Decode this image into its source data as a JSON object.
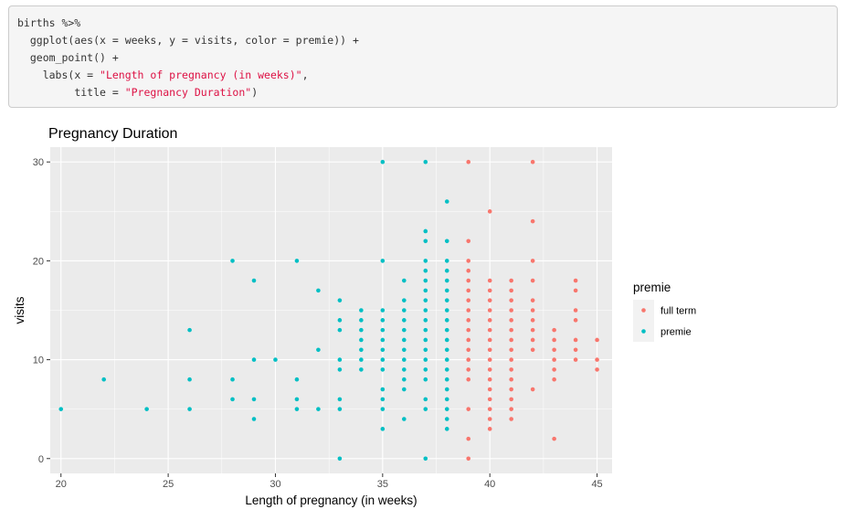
{
  "code": {
    "lines": [
      {
        "indent": "",
        "parts": [
          {
            "t": "births %>%",
            "s": false
          }
        ]
      },
      {
        "indent": "  ",
        "parts": [
          {
            "t": "ggplot(aes(x = weeks, y = visits, color = premie)) +",
            "s": false
          }
        ]
      },
      {
        "indent": "  ",
        "parts": [
          {
            "t": "geom_point() +",
            "s": false
          }
        ]
      },
      {
        "indent": "    ",
        "parts": [
          {
            "t": "labs(x = ",
            "s": false
          },
          {
            "t": "\"Length of pregnancy (in weeks)\"",
            "s": true
          },
          {
            "t": ",",
            "s": false
          }
        ]
      },
      {
        "indent": "         ",
        "parts": [
          {
            "t": "title = ",
            "s": false
          },
          {
            "t": "\"Pregnancy Duration\"",
            "s": true
          },
          {
            "t": ")",
            "s": false
          }
        ]
      }
    ]
  },
  "chart_data": {
    "type": "scatter",
    "title": "Pregnancy Duration",
    "xlabel": "Length of pregnancy (in weeks)",
    "ylabel": "visits",
    "xlim": [
      19.5,
      45.7
    ],
    "ylim": [
      -1.5,
      31.5
    ],
    "xticks": [
      20,
      25,
      30,
      35,
      40,
      45
    ],
    "yticks": [
      0,
      10,
      20,
      30
    ],
    "grid": true,
    "legend": {
      "title": "premie",
      "placement": "right"
    },
    "series": [
      {
        "name": "full term",
        "color": "#F8766D",
        "points": [
          [
            39,
            30
          ],
          [
            39,
            22
          ],
          [
            39,
            20
          ],
          [
            39,
            19
          ],
          [
            39,
            18
          ],
          [
            39,
            17
          ],
          [
            39,
            16
          ],
          [
            39,
            15
          ],
          [
            39,
            14
          ],
          [
            39,
            13
          ],
          [
            39,
            12
          ],
          [
            39,
            11
          ],
          [
            39,
            10
          ],
          [
            39,
            9
          ],
          [
            39,
            8
          ],
          [
            39,
            5
          ],
          [
            39,
            2
          ],
          [
            39,
            0
          ],
          [
            40,
            25
          ],
          [
            40,
            18
          ],
          [
            40,
            17
          ],
          [
            40,
            16
          ],
          [
            40,
            15
          ],
          [
            40,
            14
          ],
          [
            40,
            13
          ],
          [
            40,
            12
          ],
          [
            40,
            11
          ],
          [
            40,
            10
          ],
          [
            40,
            9
          ],
          [
            40,
            8
          ],
          [
            40,
            7
          ],
          [
            40,
            6
          ],
          [
            40,
            5
          ],
          [
            40,
            4
          ],
          [
            40,
            3
          ],
          [
            41,
            18
          ],
          [
            41,
            17
          ],
          [
            41,
            16
          ],
          [
            41,
            15
          ],
          [
            41,
            14
          ],
          [
            41,
            13
          ],
          [
            41,
            12
          ],
          [
            41,
            11
          ],
          [
            41,
            10
          ],
          [
            41,
            9
          ],
          [
            41,
            8
          ],
          [
            41,
            7
          ],
          [
            41,
            6
          ],
          [
            41,
            5
          ],
          [
            41,
            4
          ],
          [
            42,
            30
          ],
          [
            42,
            24
          ],
          [
            42,
            20
          ],
          [
            42,
            18
          ],
          [
            42,
            16
          ],
          [
            42,
            15
          ],
          [
            42,
            14
          ],
          [
            42,
            13
          ],
          [
            42,
            12
          ],
          [
            42,
            11
          ],
          [
            42,
            7
          ],
          [
            43,
            13
          ],
          [
            43,
            12
          ],
          [
            43,
            11
          ],
          [
            43,
            10
          ],
          [
            43,
            9
          ],
          [
            43,
            8
          ],
          [
            43,
            2
          ],
          [
            44,
            18
          ],
          [
            44,
            17
          ],
          [
            44,
            15
          ],
          [
            44,
            14
          ],
          [
            44,
            12
          ],
          [
            44,
            11
          ],
          [
            44,
            10
          ],
          [
            45,
            12
          ],
          [
            45,
            10
          ],
          [
            45,
            9
          ]
        ]
      },
      {
        "name": "premie",
        "color": "#00BFC4",
        "points": [
          [
            20,
            5
          ],
          [
            22,
            8
          ],
          [
            24,
            5
          ],
          [
            26,
            13
          ],
          [
            26,
            8
          ],
          [
            26,
            5
          ],
          [
            28,
            20
          ],
          [
            28,
            8
          ],
          [
            28,
            6
          ],
          [
            29,
            18
          ],
          [
            29,
            10
          ],
          [
            29,
            6
          ],
          [
            29,
            4
          ],
          [
            30,
            10
          ],
          [
            31,
            20
          ],
          [
            31,
            8
          ],
          [
            31,
            6
          ],
          [
            31,
            5
          ],
          [
            32,
            17
          ],
          [
            32,
            11
          ],
          [
            32,
            5
          ],
          [
            33,
            16
          ],
          [
            33,
            14
          ],
          [
            33,
            13
          ],
          [
            33,
            10
          ],
          [
            33,
            9
          ],
          [
            33,
            6
          ],
          [
            33,
            5
          ],
          [
            33,
            0
          ],
          [
            34,
            15
          ],
          [
            34,
            14
          ],
          [
            34,
            13
          ],
          [
            34,
            12
          ],
          [
            34,
            11
          ],
          [
            34,
            10
          ],
          [
            34,
            9
          ],
          [
            35,
            30
          ],
          [
            35,
            20
          ],
          [
            35,
            15
          ],
          [
            35,
            14
          ],
          [
            35,
            13
          ],
          [
            35,
            12
          ],
          [
            35,
            11
          ],
          [
            35,
            10
          ],
          [
            35,
            9
          ],
          [
            35,
            7
          ],
          [
            35,
            6
          ],
          [
            35,
            5
          ],
          [
            35,
            3
          ],
          [
            36,
            18
          ],
          [
            36,
            16
          ],
          [
            36,
            15
          ],
          [
            36,
            14
          ],
          [
            36,
            13
          ],
          [
            36,
            12
          ],
          [
            36,
            11
          ],
          [
            36,
            10
          ],
          [
            36,
            9
          ],
          [
            36,
            8
          ],
          [
            36,
            7
          ],
          [
            36,
            4
          ],
          [
            37,
            30
          ],
          [
            37,
            23
          ],
          [
            37,
            22
          ],
          [
            37,
            20
          ],
          [
            37,
            19
          ],
          [
            37,
            18
          ],
          [
            37,
            17
          ],
          [
            37,
            16
          ],
          [
            37,
            15
          ],
          [
            37,
            14
          ],
          [
            37,
            13
          ],
          [
            37,
            12
          ],
          [
            37,
            11
          ],
          [
            37,
            10
          ],
          [
            37,
            9
          ],
          [
            37,
            8
          ],
          [
            37,
            6
          ],
          [
            37,
            5
          ],
          [
            37,
            0
          ],
          [
            38,
            26
          ],
          [
            38,
            22
          ],
          [
            38,
            20
          ],
          [
            38,
            19
          ],
          [
            38,
            18
          ],
          [
            38,
            17
          ],
          [
            38,
            16
          ],
          [
            38,
            15
          ],
          [
            38,
            14
          ],
          [
            38,
            13
          ],
          [
            38,
            12
          ],
          [
            38,
            11
          ],
          [
            38,
            10
          ],
          [
            38,
            9
          ],
          [
            38,
            8
          ],
          [
            38,
            7
          ],
          [
            38,
            6
          ],
          [
            38,
            5
          ],
          [
            38,
            4
          ],
          [
            38,
            3
          ]
        ]
      }
    ]
  }
}
